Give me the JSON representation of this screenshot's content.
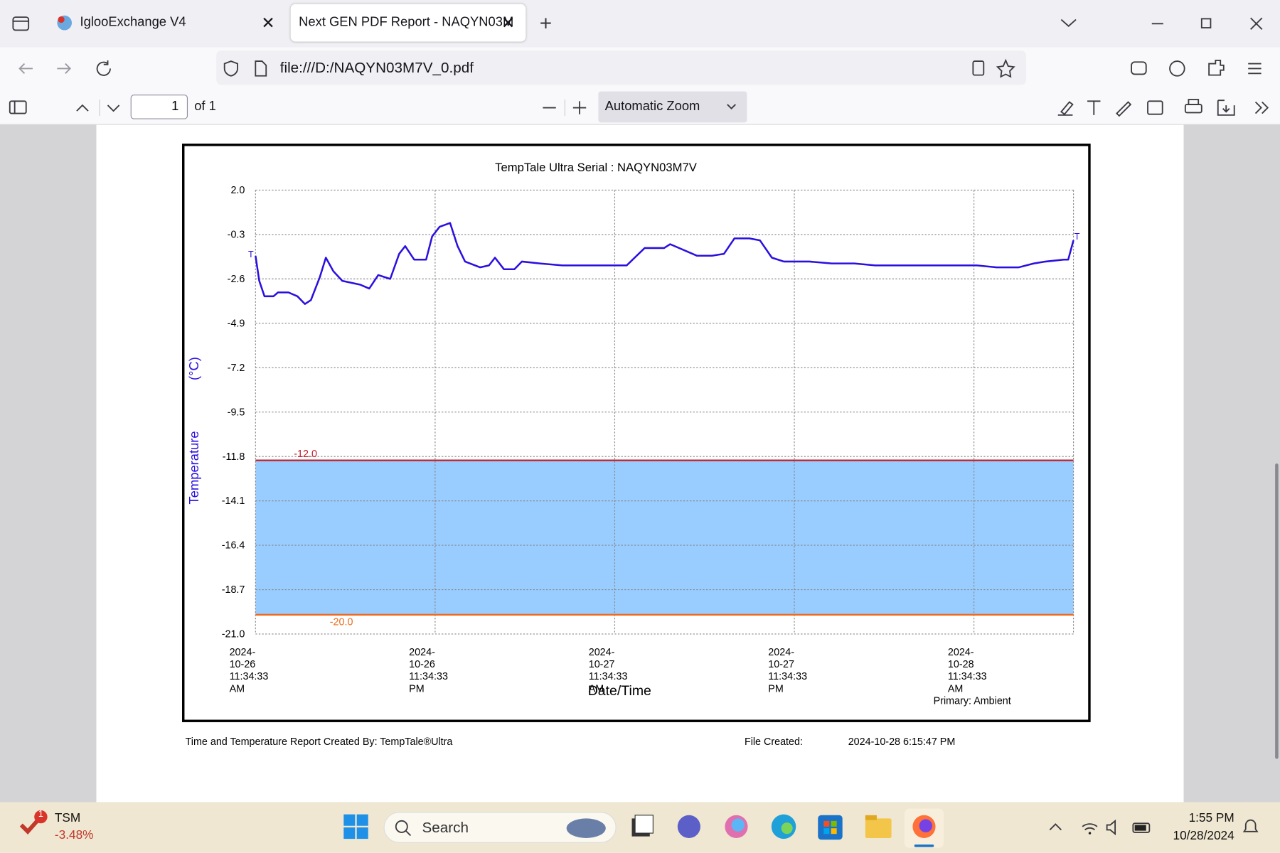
{
  "browser": {
    "tabs": [
      "IglooExchange V4",
      "Next GEN PDF Report - NAQYN03M"
    ],
    "url": "file:///D:/NAQYN03M7V_0.pdf",
    "page_number": "1",
    "page_count": "of 1",
    "zoom": "Automatic Zoom"
  },
  "chart_data": {
    "type": "line",
    "title": "TempTale Ultra  Serial : NAQYN03M7V",
    "ylabel": "Temperature",
    "yunit": "(°C)",
    "xlabel": "Date/Time",
    "note": "Primary: Ambient",
    "end_marker": "T",
    "color": "#2a10e0",
    "grid": true,
    "x": [
      "2024-10-26T11:34:33",
      "2024-10-26T11:49:33",
      "2024-10-26T12:10:33",
      "2024-10-26T12:46:33",
      "2024-10-26T13:04:33",
      "2024-10-26T13:46:33",
      "2024-10-26T14:22:33",
      "2024-10-26T14:52:33",
      "2024-10-26T15:16:33",
      "2024-10-26T15:52:33",
      "2024-10-26T16:16:33",
      "2024-10-26T16:46:33",
      "2024-10-26T17:22:33",
      "2024-10-26T18:34:33",
      "2024-10-26T19:10:33",
      "2024-10-26T19:46:33",
      "2024-10-26T20:34:33",
      "2024-10-26T21:10:33",
      "2024-10-26T21:34:33",
      "2024-10-26T22:10:33",
      "2024-10-26T22:58:33",
      "2024-10-26T23:22:33",
      "2024-10-26T23:52:33",
      "2024-10-27T00:34:33",
      "2024-10-27T01:04:33",
      "2024-10-27T01:34:33",
      "2024-10-27T02:34:33",
      "2024-10-27T03:10:33",
      "2024-10-27T03:34:33",
      "2024-10-27T04:10:33",
      "2024-10-27T04:52:33",
      "2024-10-27T05:22:33",
      "2024-10-27T06:34:33",
      "2024-10-27T08:04:33",
      "2024-10-27T11:04:33",
      "2024-10-27T12:22:33",
      "2024-10-27T13:34:33",
      "2024-10-27T14:52:33",
      "2024-10-27T15:16:33",
      "2024-10-27T17:04:33",
      "2024-10-27T18:04:33",
      "2024-10-27T18:52:33",
      "2024-10-27T19:34:33",
      "2024-10-27T20:34:33",
      "2024-10-27T21:16:33",
      "2024-10-27T22:04:33",
      "2024-10-27T22:52:33",
      "2024-10-28T00:34:33",
      "2024-10-28T02:04:33",
      "2024-10-28T03:34:33",
      "2024-10-28T04:58:33",
      "2024-10-28T11:46:33",
      "2024-10-28T13:04:33",
      "2024-10-28T14:34:33",
      "2024-10-28T15:34:33",
      "2024-10-28T16:22:33",
      "2024-10-28T17:34:33",
      "2024-10-28T17:52:33",
      "2024-10-28T18:13:33"
    ],
    "values": [
      -1.4,
      -2.7,
      -3.5,
      -3.5,
      -3.3,
      -3.3,
      -3.5,
      -3.9,
      -3.7,
      -2.5,
      -1.5,
      -2.2,
      -2.7,
      -2.9,
      -3.1,
      -2.4,
      -2.6,
      -1.3,
      -0.9,
      -1.6,
      -1.6,
      -0.4,
      0.1,
      0.3,
      -0.9,
      -1.7,
      -2.0,
      -1.9,
      -1.5,
      -2.1,
      -2.1,
      -1.7,
      -1.8,
      -1.9,
      -1.9,
      -1.9,
      -1.0,
      -1.0,
      -0.8,
      -1.4,
      -1.4,
      -1.3,
      -0.5,
      -0.5,
      -0.6,
      -1.5,
      -1.7,
      -1.7,
      -1.8,
      -1.8,
      -1.9,
      -1.9,
      -2.0,
      -2.0,
      -1.8,
      -1.7,
      -1.6,
      -1.6,
      -0.6
    ],
    "xlim": [
      "2024-10-26T11:34:33",
      "2024-10-28T18:13:33"
    ],
    "xticks": [
      {
        "value": "2024-10-26T11:34:33",
        "label": "2024-10-26\n11:34:33 AM"
      },
      {
        "value": "2024-10-26T23:34:33",
        "label": "2024-10-26\n11:34:33 PM"
      },
      {
        "value": "2024-10-27T11:34:33",
        "label": "2024-10-27\n11:34:33 AM"
      },
      {
        "value": "2024-10-27T23:34:33",
        "label": "2024-10-27\n11:34:33 PM"
      },
      {
        "value": "2024-10-28T11:34:33",
        "label": "2024-10-28\n11:34:33 AM"
      }
    ],
    "ylim": [
      -21,
      2
    ],
    "yticks": [
      {
        "value": 2,
        "label": "2.0"
      },
      -0.3,
      -2.6,
      -4.9,
      -7.2,
      -9.5,
      -11.8,
      -14.1,
      -16.4,
      -18.7,
      {
        "value": -21,
        "label": "-21.0"
      }
    ],
    "thresholds": [
      {
        "value": -12,
        "label": "-12.0",
        "color": "#c0202a"
      },
      {
        "value": -20,
        "label": "-20.0",
        "color": "#f06a1e"
      }
    ],
    "band_color": "#99ccff"
  },
  "report_footer": {
    "created_by": "Time and Temperature Report Created By:  TempTale®Ultra",
    "file_created_label": "File Created:",
    "file_created": "2024-10-28  6:15:47 PM"
  },
  "taskbar": {
    "badge": "1",
    "ticker": "TSM",
    "change": "-3.48%",
    "search": "Search",
    "time": "1:55 PM",
    "date": "10/28/2024"
  }
}
